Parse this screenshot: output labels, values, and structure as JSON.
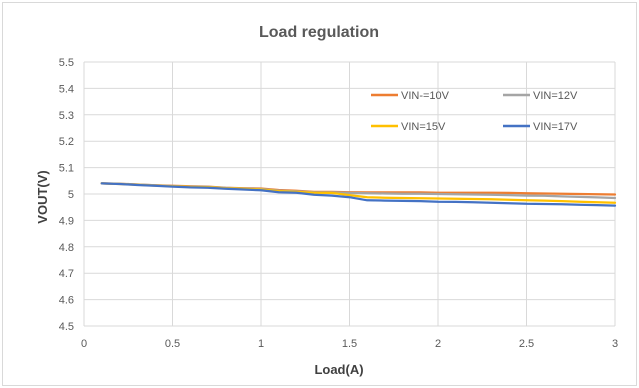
{
  "chart_data": {
    "type": "line",
    "title": "Load regulation",
    "xlabel": "Load(A)",
    "ylabel": "VOUT(V)",
    "xlim": [
      0,
      3
    ],
    "ylim": [
      4.5,
      5.5
    ],
    "xticks": [
      0,
      0.5,
      1,
      1.5,
      2,
      2.5,
      3
    ],
    "yticks": [
      4.5,
      4.6,
      4.7,
      4.8,
      4.9,
      5,
      5.1,
      5.2,
      5.3,
      5.4,
      5.5
    ],
    "xtick_labels": [
      "0",
      "0.5",
      "1",
      "1.5",
      "2",
      "2.5",
      "3"
    ],
    "ytick_labels": [
      "4.5",
      "4.6",
      "4.7",
      "4.8",
      "4.9",
      "5",
      "5.1",
      "5.2",
      "5.3",
      "5.4",
      "5.5"
    ],
    "grid": true,
    "legend_position": "top-right",
    "series": [
      {
        "name": "VIN-=10V",
        "color": "#ED7D31",
        "x": [
          0.1,
          0.2,
          0.3,
          0.4,
          0.5,
          0.6,
          0.7,
          0.8,
          0.9,
          1.0,
          1.1,
          1.2,
          1.3,
          1.4,
          1.5,
          1.6,
          1.7,
          1.8,
          1.9,
          2.0,
          2.1,
          2.2,
          2.3,
          2.4,
          2.5,
          2.6,
          2.7,
          2.8,
          2.9,
          3.0
        ],
        "values": [
          5.04,
          5.039,
          5.036,
          5.033,
          5.031,
          5.029,
          5.028,
          5.024,
          5.022,
          5.021,
          5.015,
          5.012,
          5.008,
          5.008,
          5.007,
          5.006,
          5.006,
          5.006,
          5.006,
          5.005,
          5.005,
          5.005,
          5.005,
          5.004,
          5.003,
          5.002,
          5.001,
          5.0,
          4.999,
          4.998
        ]
      },
      {
        "name": "VIN=12V",
        "color": "#A5A5A5",
        "x": [
          0.1,
          0.2,
          0.3,
          0.4,
          0.5,
          0.6,
          0.7,
          0.8,
          0.9,
          1.0,
          1.1,
          1.2,
          1.3,
          1.4,
          1.5,
          1.6,
          1.7,
          1.8,
          1.9,
          2.0,
          2.1,
          2.2,
          2.3,
          2.4,
          2.5,
          2.6,
          2.7,
          2.8,
          2.9,
          3.0
        ],
        "values": [
          5.04,
          5.039,
          5.036,
          5.033,
          5.03,
          5.028,
          5.027,
          5.023,
          5.021,
          5.019,
          5.013,
          5.01,
          5.007,
          5.006,
          5.004,
          5.003,
          5.002,
          5.001,
          5.001,
          5.0,
          4.999,
          4.998,
          4.997,
          4.996,
          4.994,
          4.993,
          4.991,
          4.989,
          4.987,
          4.985
        ]
      },
      {
        "name": "VIN=15V",
        "color": "#FFC000",
        "x": [
          0.1,
          0.2,
          0.3,
          0.4,
          0.5,
          0.6,
          0.7,
          0.8,
          0.9,
          1.0,
          1.1,
          1.2,
          1.3,
          1.4,
          1.5,
          1.6,
          1.7,
          1.8,
          1.9,
          2.0,
          2.1,
          2.2,
          2.3,
          2.4,
          2.5,
          2.6,
          2.7,
          2.8,
          2.9,
          3.0
        ],
        "values": [
          5.04,
          5.038,
          5.035,
          5.032,
          5.029,
          5.027,
          5.026,
          5.022,
          5.02,
          5.017,
          5.011,
          5.008,
          5.005,
          5.004,
          4.996,
          4.988,
          4.986,
          4.985,
          4.984,
          4.983,
          4.982,
          4.981,
          4.98,
          4.978,
          4.976,
          4.975,
          4.973,
          4.971,
          4.969,
          4.967
        ]
      },
      {
        "name": "VIN=17V",
        "color": "#4472C4",
        "x": [
          0.1,
          0.2,
          0.3,
          0.4,
          0.5,
          0.6,
          0.7,
          0.8,
          0.9,
          1.0,
          1.1,
          1.2,
          1.3,
          1.4,
          1.5,
          1.6,
          1.7,
          1.8,
          1.9,
          2.0,
          2.1,
          2.2,
          2.3,
          2.4,
          2.5,
          2.6,
          2.7,
          2.8,
          2.9,
          3.0
        ],
        "values": [
          5.04,
          5.038,
          5.034,
          5.031,
          5.028,
          5.025,
          5.024,
          5.02,
          5.017,
          5.014,
          5.007,
          5.005,
          4.997,
          4.994,
          4.988,
          4.976,
          4.975,
          4.974,
          4.973,
          4.971,
          4.97,
          4.969,
          4.967,
          4.965,
          4.963,
          4.962,
          4.961,
          4.959,
          4.958,
          4.956
        ]
      }
    ]
  }
}
